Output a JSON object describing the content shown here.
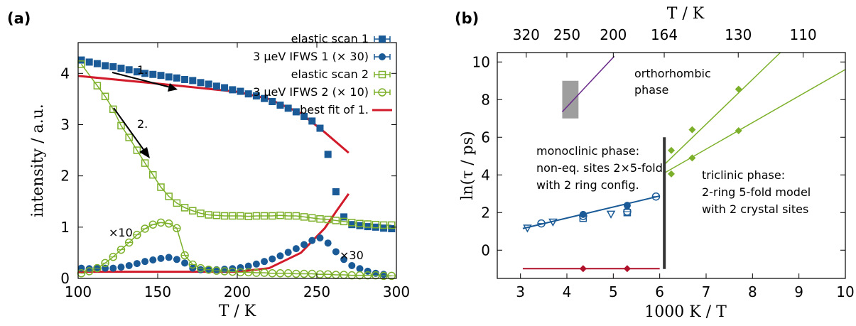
{
  "panel_a": {
    "label": "(a)",
    "xlabel": "T / K",
    "ylabel": "intensity / a.u.",
    "legend": [
      "elastic scan 1",
      "3 μeV IFWS 1 (× 30)",
      "elastic scan 2",
      "3 μeV IFWS 2 (× 10)",
      "best fit of 1."
    ],
    "annotations": {
      "arrow1": "1.",
      "arrow2": "2.",
      "mult10": "×10",
      "mult30": "×30"
    },
    "xticks": [
      "100",
      "150",
      "200",
      "250",
      "300"
    ],
    "yticks": [
      "0",
      "1",
      "2",
      "3",
      "4"
    ]
  },
  "panel_b": {
    "label": "(b)",
    "xlabel": "1000 K / T",
    "top_xlabel": "T / K",
    "ylabel": "ln(τ / ps)",
    "xticks": [
      "3",
      "4",
      "5",
      "6",
      "7",
      "8",
      "9",
      "10"
    ],
    "yticks": [
      "0",
      "2",
      "4",
      "6",
      "8",
      "10"
    ],
    "top_ticks": [
      "320",
      "250",
      "200",
      "164",
      "130",
      "110"
    ],
    "annotations": {
      "ortho": [
        "orthorhombic",
        "phase"
      ],
      "mono": [
        "monoclinic phase:",
        "non-eq. sites 2×5-fold",
        "with 2 ring config."
      ],
      "tri": [
        "triclinic phase:",
        "2-ring 5-fold model",
        "with 2 crystal sites"
      ]
    }
  },
  "colors": {
    "dark_blue": "#1a5a96",
    "green": "#7db02a",
    "red": "#d21b2a",
    "purple": "#6a2b8a",
    "gray": "#9e9e9e",
    "dark_red": "#b0102a"
  },
  "chart_data": [
    {
      "type": "scatter",
      "title": "",
      "xlabel": "T / K",
      "ylabel": "intensity / a.u.",
      "xlim": [
        100,
        300
      ],
      "ylim": [
        0,
        4.6
      ],
      "series": [
        {
          "name": "elastic scan 1",
          "marker": "filled-square",
          "points": [
            [
              102,
              4.26
            ],
            [
              107,
              4.22
            ],
            [
              112,
              4.19
            ],
            [
              117,
              4.15
            ],
            [
              122,
              4.13
            ],
            [
              127,
              4.1
            ],
            [
              132,
              4.07
            ],
            [
              137,
              4.03
            ],
            [
              142,
              4.0
            ],
            [
              147,
              3.98
            ],
            [
              152,
              3.96
            ],
            [
              157,
              3.93
            ],
            [
              162,
              3.91
            ],
            [
              167,
              3.88
            ],
            [
              172,
              3.86
            ],
            [
              177,
              3.82
            ],
            [
              182,
              3.79
            ],
            [
              187,
              3.75
            ],
            [
              192,
              3.72
            ],
            [
              197,
              3.68
            ],
            [
              202,
              3.65
            ],
            [
              207,
              3.6
            ],
            [
              212,
              3.56
            ],
            [
              217,
              3.51
            ],
            [
              222,
              3.45
            ],
            [
              227,
              3.38
            ],
            [
              232,
              3.32
            ],
            [
              237,
              3.25
            ],
            [
              242,
              3.16
            ],
            [
              247,
              3.07
            ],
            [
              252,
              2.93
            ],
            [
              257,
              2.42
            ],
            [
              262,
              1.69
            ],
            [
              267,
              1.2
            ],
            [
              272,
              1.05
            ],
            [
              277,
              1.03
            ],
            [
              282,
              1.01
            ],
            [
              287,
              1.0
            ],
            [
              292,
              0.98
            ],
            [
              297,
              0.97
            ]
          ]
        },
        {
          "name": "3 μeV IFWS 1 (× 30)",
          "marker": "filled-circle",
          "points": [
            [
              102,
              0.2
            ],
            [
              107,
              0.19
            ],
            [
              112,
              0.21
            ],
            [
              117,
              0.2
            ],
            [
              122,
              0.2
            ],
            [
              127,
              0.22
            ],
            [
              132,
              0.25
            ],
            [
              137,
              0.29
            ],
            [
              142,
              0.33
            ],
            [
              147,
              0.36
            ],
            [
              152,
              0.39
            ],
            [
              157,
              0.41
            ],
            [
              162,
              0.37
            ],
            [
              167,
              0.3
            ],
            [
              172,
              0.2
            ],
            [
              177,
              0.17
            ],
            [
              182,
              0.17
            ],
            [
              187,
              0.17
            ],
            [
              192,
              0.18
            ],
            [
              197,
              0.19
            ],
            [
              202,
              0.21
            ],
            [
              207,
              0.24
            ],
            [
              212,
              0.28
            ],
            [
              217,
              0.33
            ],
            [
              222,
              0.38
            ],
            [
              227,
              0.44
            ],
            [
              232,
              0.51
            ],
            [
              237,
              0.58
            ],
            [
              242,
              0.66
            ],
            [
              247,
              0.74
            ],
            [
              252,
              0.79
            ],
            [
              257,
              0.69
            ],
            [
              262,
              0.52
            ],
            [
              267,
              0.37
            ],
            [
              272,
              0.25
            ],
            [
              277,
              0.19
            ],
            [
              282,
              0.14
            ],
            [
              287,
              0.1
            ],
            [
              292,
              0.08
            ]
          ]
        },
        {
          "name": "elastic scan 2",
          "marker": "open-square",
          "points": [
            [
              102,
              4.18
            ],
            [
              112,
              3.76
            ],
            [
              117,
              3.55
            ],
            [
              122,
              3.3
            ],
            [
              127,
              2.98
            ],
            [
              132,
              2.75
            ],
            [
              137,
              2.5
            ],
            [
              142,
              2.25
            ],
            [
              147,
              2.02
            ],
            [
              152,
              1.78
            ],
            [
              157,
              1.6
            ],
            [
              162,
              1.47
            ],
            [
              167,
              1.38
            ],
            [
              172,
              1.32
            ],
            [
              177,
              1.27
            ],
            [
              182,
              1.24
            ],
            [
              187,
              1.23
            ],
            [
              192,
              1.22
            ],
            [
              197,
              1.22
            ],
            [
              202,
              1.22
            ],
            [
              207,
              1.21
            ],
            [
              212,
              1.22
            ],
            [
              217,
              1.22
            ],
            [
              222,
              1.22
            ],
            [
              227,
              1.23
            ],
            [
              232,
              1.22
            ],
            [
              237,
              1.22
            ],
            [
              242,
              1.2
            ],
            [
              247,
              1.18
            ],
            [
              252,
              1.16
            ],
            [
              257,
              1.15
            ],
            [
              262,
              1.13
            ],
            [
              267,
              1.11
            ],
            [
              272,
              1.09
            ],
            [
              277,
              1.07
            ],
            [
              282,
              1.06
            ],
            [
              287,
              1.05
            ],
            [
              292,
              1.04
            ],
            [
              297,
              1.04
            ]
          ]
        },
        {
          "name": "3 μeV IFWS 2 (× 10)",
          "marker": "open-circle",
          "points": [
            [
              102,
              0.1
            ],
            [
              107,
              0.14
            ],
            [
              112,
              0.2
            ],
            [
              117,
              0.3
            ],
            [
              122,
              0.42
            ],
            [
              127,
              0.56
            ],
            [
              132,
              0.7
            ],
            [
              137,
              0.85
            ],
            [
              142,
              0.97
            ],
            [
              147,
              1.05
            ],
            [
              152,
              1.09
            ],
            [
              157,
              1.07
            ],
            [
              162,
              0.98
            ],
            [
              167,
              0.45
            ],
            [
              172,
              0.27
            ],
            [
              177,
              0.2
            ],
            [
              182,
              0.17
            ],
            [
              187,
              0.15
            ],
            [
              192,
              0.14
            ],
            [
              197,
              0.13
            ],
            [
              202,
              0.12
            ],
            [
              207,
              0.12
            ],
            [
              212,
              0.11
            ],
            [
              217,
              0.11
            ],
            [
              222,
              0.1
            ],
            [
              227,
              0.1
            ],
            [
              232,
              0.1
            ],
            [
              237,
              0.09
            ],
            [
              242,
              0.09
            ],
            [
              247,
              0.09
            ],
            [
              252,
              0.08
            ],
            [
              257,
              0.08
            ],
            [
              262,
              0.07
            ],
            [
              267,
              0.07
            ],
            [
              272,
              0.06
            ],
            [
              277,
              0.06
            ],
            [
              282,
              0.06
            ],
            [
              287,
              0.06
            ],
            [
              292,
              0.05
            ],
            [
              297,
              0.05
            ]
          ]
        },
        {
          "name": "best fit of 1.",
          "type": "line",
          "segments": [
            [
              [
                100,
                3.95
              ],
              [
                150,
                3.8
              ],
              [
                200,
                3.64
              ],
              [
                220,
                3.5
              ],
              [
                240,
                3.22
              ],
              [
                255,
                2.85
              ],
              [
                270,
                2.45
              ]
            ],
            [
              [
                100,
                0.13
              ],
              [
                200,
                0.13
              ],
              [
                220,
                0.2
              ],
              [
                240,
                0.5
              ],
              [
                255,
                0.98
              ],
              [
                262,
                1.3
              ],
              [
                270,
                1.65
              ]
            ]
          ]
        }
      ]
    },
    {
      "type": "scatter",
      "title": "",
      "xlabel": "1000 K / T",
      "ylabel": "ln(τ / ps)",
      "xlim": [
        2.5,
        10
      ],
      "ylim": [
        -1.5,
        10.5
      ],
      "secondary_xaxis": {
        "label": "T / K",
        "ticks": [
          320,
          250,
          200,
          164,
          130,
          110
        ]
      },
      "series": [
        {
          "marker": "open-triangle",
          "points": [
            [
              3.15,
              1.18
            ],
            [
              3.7,
              1.5
            ],
            [
              4.95,
              1.92
            ]
          ]
        },
        {
          "marker": "open-circle",
          "points": [
            [
              3.45,
              1.42
            ],
            [
              4.35,
              1.82
            ],
            [
              5.3,
              2.05
            ],
            [
              5.92,
              2.85
            ]
          ]
        },
        {
          "marker": "open-square",
          "points": [
            [
              4.35,
              1.7
            ],
            [
              5.3,
              2.0
            ]
          ]
        },
        {
          "marker": "filled-circle",
          "points": [
            [
              4.35,
              1.9
            ],
            [
              5.3,
              2.38
            ]
          ]
        },
        {
          "name": "fit",
          "type": "line",
          "points": [
            [
              3.05,
              1.15
            ],
            [
              6.0,
              2.88
            ]
          ]
        },
        {
          "marker": "filled-diamond",
          "points": [
            [
              6.25,
              5.3
            ],
            [
              6.7,
              6.4
            ],
            [
              7.7,
              8.55
            ]
          ]
        },
        {
          "marker": "filled-diamond",
          "points": [
            [
              6.25,
              4.05
            ],
            [
              6.7,
              4.9
            ],
            [
              7.7,
              6.35
            ]
          ]
        },
        {
          "type": "line",
          "points": [
            [
              6.1,
              4.55
            ],
            [
              8.6,
              10.5
            ]
          ]
        },
        {
          "type": "line",
          "points": [
            [
              6.1,
              4.1
            ],
            [
              10.0,
              9.6
            ]
          ]
        },
        {
          "marker": "filled-diamond",
          "points": [
            [
              4.35,
              -0.98
            ],
            [
              5.3,
              -0.98
            ]
          ]
        },
        {
          "type": "line",
          "points": [
            [
              3.05,
              -0.98
            ],
            [
              6.0,
              -0.98
            ]
          ]
        },
        {
          "type": "line",
          "points": [
            [
              3.9,
              7.35
            ],
            [
              5.02,
              10.3
            ]
          ]
        },
        {
          "type": "band",
          "x": [
            3.9,
            4.25
          ],
          "y": [
            7.0,
            9.0
          ]
        },
        {
          "type": "line",
          "points": [
            [
              6.1,
              -1.0
            ],
            [
              6.1,
              6.0
            ]
          ]
        }
      ]
    }
  ]
}
